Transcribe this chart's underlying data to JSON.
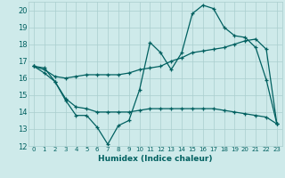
{
  "xlabel": "Humidex (Indice chaleur)",
  "xlim": [
    -0.5,
    23.5
  ],
  "ylim": [
    12,
    20.5
  ],
  "yticks": [
    12,
    13,
    14,
    15,
    16,
    17,
    18,
    19,
    20
  ],
  "xticks": [
    0,
    1,
    2,
    3,
    4,
    5,
    6,
    7,
    8,
    9,
    10,
    11,
    12,
    13,
    14,
    15,
    16,
    17,
    18,
    19,
    20,
    21,
    22,
    23
  ],
  "background_color": "#ceeaea",
  "grid_color": "#aacece",
  "line_color": "#006060",
  "line1_y": [
    16.7,
    16.6,
    15.8,
    14.7,
    13.8,
    13.8,
    13.1,
    12.1,
    13.2,
    13.5,
    15.3,
    18.1,
    17.5,
    16.5,
    17.5,
    19.8,
    20.3,
    20.1,
    19.0,
    18.5,
    18.4,
    17.8,
    15.9,
    13.3
  ],
  "line2_y": [
    16.7,
    16.5,
    16.1,
    16.0,
    16.1,
    16.2,
    16.2,
    16.2,
    16.2,
    16.3,
    16.5,
    16.6,
    16.7,
    17.0,
    17.2,
    17.5,
    17.6,
    17.7,
    17.8,
    18.0,
    18.2,
    18.3,
    17.7,
    13.3
  ],
  "line3_y": [
    16.7,
    16.3,
    15.8,
    14.8,
    14.3,
    14.2,
    14.0,
    14.0,
    14.0,
    14.0,
    14.1,
    14.2,
    14.2,
    14.2,
    14.2,
    14.2,
    14.2,
    14.2,
    14.1,
    14.0,
    13.9,
    13.8,
    13.7,
    13.3
  ]
}
